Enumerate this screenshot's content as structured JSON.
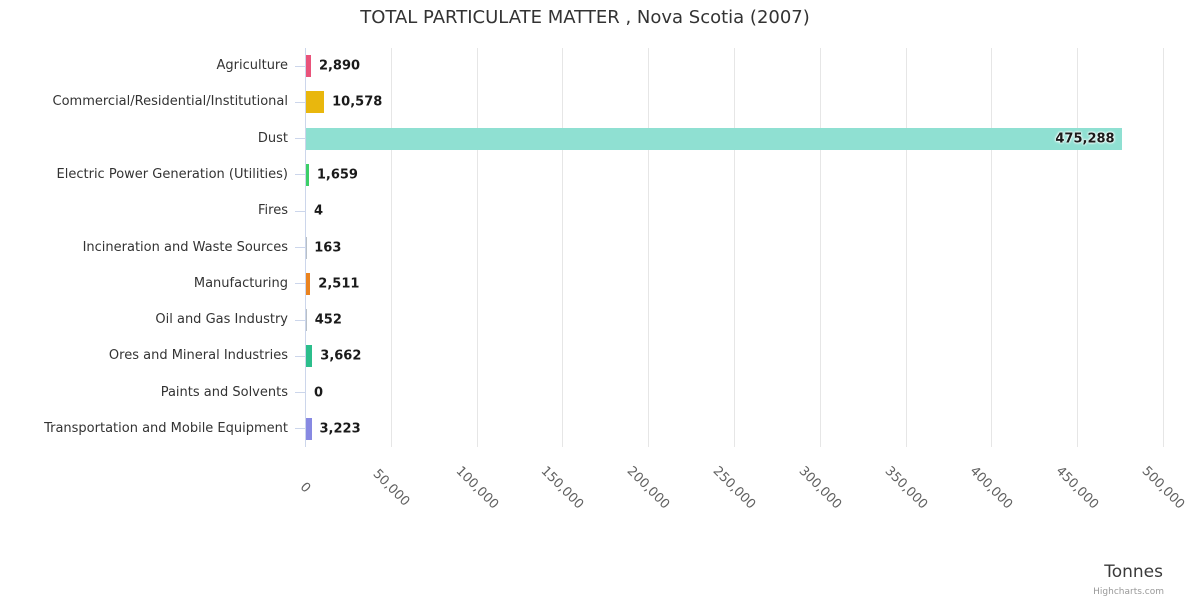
{
  "title": "TOTAL PARTICULATE MATTER , Nova Scotia (2007)",
  "credits_label": "Highcharts.com",
  "chart_data": {
    "type": "bar",
    "orientation": "horizontal",
    "title": "TOTAL PARTICULATE MATTER , Nova Scotia (2007)",
    "xlabel": "Tonnes",
    "ylabel": "",
    "xlim": [
      0,
      500000
    ],
    "grid": true,
    "legend": false,
    "categories": [
      "Agriculture",
      "Commercial/Residential/Institutional",
      "Dust",
      "Electric Power Generation (Utilities)",
      "Fires",
      "Incineration and Waste Sources",
      "Manufacturing",
      "Oil and Gas Industry",
      "Ores and Mineral Industries",
      "Paints and Solvents",
      "Transportation and Mobile Equipment"
    ],
    "values": [
      2890,
      10578,
      475288,
      1659,
      4,
      163,
      2511,
      452,
      3662,
      0,
      3223
    ],
    "value_labels": [
      "2,890",
      "10,578",
      "475,288",
      "1,659",
      "4",
      "163",
      "2,511",
      "452",
      "3,662",
      "0",
      "3,223"
    ],
    "bar_colors": [
      "#e9537b",
      "#e9b70d",
      "#8fe0d2",
      "#3ccf68",
      "#b8c0c8",
      "#b8c0c8",
      "#ea831f",
      "#b8c0c8",
      "#2cbe8c",
      "#b8c0c8",
      "#8789e2"
    ],
    "x_ticks": [
      0,
      50000,
      100000,
      150000,
      200000,
      250000,
      300000,
      350000,
      400000,
      450000,
      500000
    ],
    "x_tick_labels": [
      "0",
      "50,000",
      "100,000",
      "150,000",
      "200,000",
      "250,000",
      "300,000",
      "350,000",
      "400,000",
      "450,000",
      "500,000"
    ]
  },
  "theme": {
    "grid_color": "#e6e6e6",
    "axis_color": "#ccd6eb",
    "title_color": "#333333",
    "category_color": "#333333",
    "value_label_color": "#1a1a1a",
    "tick_label_color": "#606060",
    "xaxis_title_color": "#3a3a3a",
    "credits_color": "#999999"
  }
}
